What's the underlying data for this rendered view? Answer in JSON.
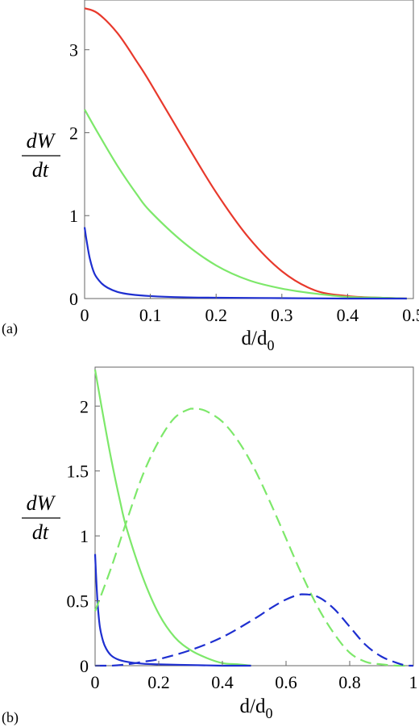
{
  "figure": {
    "panels": [
      {
        "label": "(a)",
        "ylabel_num": "dW",
        "ylabel_den": "dt",
        "xlabel_main": "d/d",
        "xlabel_sub": "0"
      },
      {
        "label": "(b)",
        "ylabel_num": "dW",
        "ylabel_den": "dt",
        "xlabel_main": "d/d",
        "xlabel_sub": "0"
      }
    ]
  },
  "chart_data": [
    {
      "type": "line",
      "panel": "(a)",
      "xlim": [
        0,
        0.5
      ],
      "ylim": [
        0,
        3.6
      ],
      "xticks": [
        "0",
        "0.1",
        "0.2",
        "0.3",
        "0.4",
        "0.5"
      ],
      "yticks": [
        "0",
        "1",
        "2",
        "3"
      ],
      "grid": false,
      "series": [
        {
          "color": "#e8392c",
          "dash": "solid",
          "x": [
            0,
            0.02,
            0.05,
            0.08,
            0.1,
            0.15,
            0.2,
            0.25,
            0.3,
            0.35,
            0.4,
            0.45,
            0.49
          ],
          "y": [
            3.5,
            3.44,
            3.2,
            2.85,
            2.6,
            1.93,
            1.28,
            0.73,
            0.33,
            0.1,
            0.03,
            0.01,
            0.0
          ]
        },
        {
          "color": "#7de86a",
          "dash": "solid",
          "x": [
            0,
            0.02,
            0.05,
            0.08,
            0.1,
            0.15,
            0.2,
            0.25,
            0.3,
            0.35,
            0.4,
            0.45,
            0.49
          ],
          "y": [
            2.28,
            2.0,
            1.6,
            1.25,
            1.05,
            0.68,
            0.4,
            0.22,
            0.12,
            0.06,
            0.02,
            0.01,
            0.0
          ]
        },
        {
          "color": "#1e2fd0",
          "dash": "solid",
          "x": [
            0,
            0.003,
            0.008,
            0.015,
            0.025,
            0.035,
            0.05,
            0.07,
            0.1,
            0.15,
            0.2,
            0.3,
            0.4,
            0.49
          ],
          "y": [
            0.86,
            0.7,
            0.48,
            0.3,
            0.19,
            0.13,
            0.08,
            0.05,
            0.03,
            0.015,
            0.01,
            0.005,
            0.0,
            0.0
          ]
        }
      ]
    },
    {
      "type": "line",
      "panel": "(b)",
      "xlim": [
        0,
        1
      ],
      "ylim": [
        0,
        2.3
      ],
      "xticks": [
        "0",
        "0.2",
        "0.4",
        "0.6",
        "0.8",
        "1"
      ],
      "yticks": [
        "0",
        "0.5",
        "1",
        "1.5",
        "2"
      ],
      "grid": false,
      "series": [
        {
          "color": "#7de86a",
          "dash": "solid",
          "x": [
            0,
            0.02,
            0.05,
            0.08,
            0.1,
            0.15,
            0.2,
            0.25,
            0.3,
            0.35,
            0.4,
            0.45,
            0.49
          ],
          "y": [
            2.28,
            2.0,
            1.6,
            1.25,
            1.05,
            0.68,
            0.4,
            0.22,
            0.12,
            0.06,
            0.02,
            0.01,
            0.0
          ]
        },
        {
          "color": "#1e2fd0",
          "dash": "solid",
          "x": [
            0,
            0.003,
            0.008,
            0.015,
            0.025,
            0.035,
            0.05,
            0.07,
            0.1,
            0.15,
            0.2,
            0.3,
            0.4,
            0.49
          ],
          "y": [
            0.86,
            0.7,
            0.48,
            0.3,
            0.19,
            0.13,
            0.08,
            0.05,
            0.03,
            0.015,
            0.01,
            0.005,
            0.0,
            0.0
          ]
        },
        {
          "color": "#7de86a",
          "dash": "dashed",
          "x": [
            0,
            0.05,
            0.1,
            0.15,
            0.2,
            0.25,
            0.3,
            0.32,
            0.35,
            0.4,
            0.45,
            0.5,
            0.55,
            0.6,
            0.65,
            0.7,
            0.75,
            0.8,
            0.85,
            0.9,
            0.95,
            0.98
          ],
          "y": [
            0.42,
            0.75,
            1.12,
            1.47,
            1.73,
            1.91,
            1.98,
            1.98,
            1.96,
            1.88,
            1.73,
            1.52,
            1.26,
            0.98,
            0.7,
            0.45,
            0.25,
            0.1,
            0.03,
            0.01,
            0.0,
            0.0
          ]
        },
        {
          "color": "#1e2fd0",
          "dash": "dashed",
          "x": [
            0,
            0.05,
            0.1,
            0.15,
            0.2,
            0.3,
            0.4,
            0.5,
            0.55,
            0.6,
            0.65,
            0.7,
            0.75,
            0.8,
            0.85,
            0.9,
            0.95,
            0.98,
            1.0
          ],
          "y": [
            0.0,
            0.0,
            0.01,
            0.03,
            0.05,
            0.12,
            0.22,
            0.36,
            0.44,
            0.51,
            0.55,
            0.53,
            0.44,
            0.3,
            0.16,
            0.07,
            0.02,
            0.0,
            0.0
          ]
        }
      ]
    }
  ]
}
